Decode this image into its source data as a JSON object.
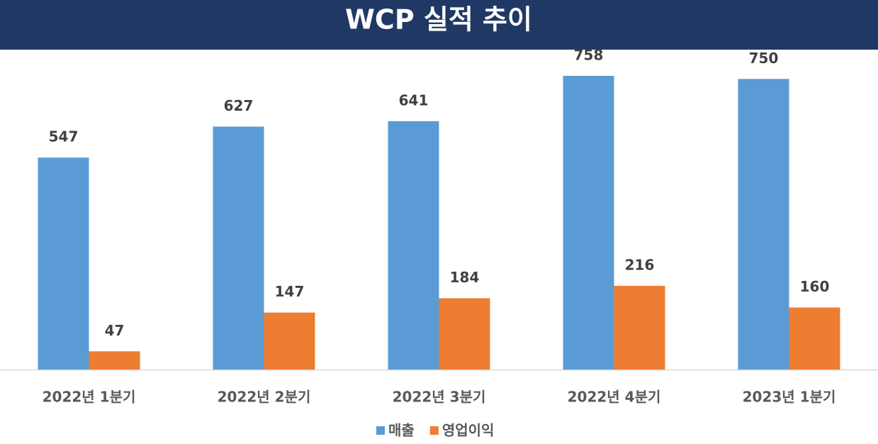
{
  "chart_data": {
    "type": "bar",
    "title": "WCP 실적 추이",
    "categories": [
      "2022년 1분기",
      "2022년 2분기",
      "2022년 3분기",
      "2022년 4분기",
      "2023년 1분기"
    ],
    "series": [
      {
        "name": "매출",
        "color": "#5b9bd5",
        "values": [
          547,
          627,
          641,
          758,
          750
        ]
      },
      {
        "name": "영업이익",
        "color": "#ed7d31",
        "values": [
          47,
          147,
          184,
          216,
          160
        ]
      }
    ],
    "ylim": [
      0,
      800
    ]
  }
}
